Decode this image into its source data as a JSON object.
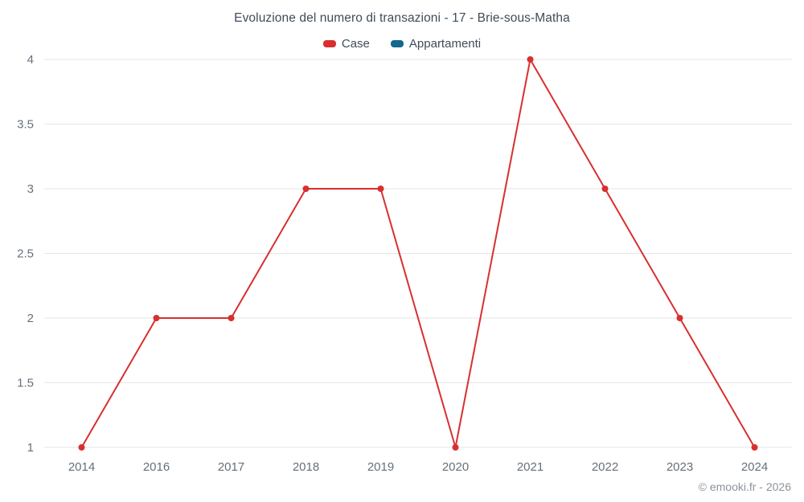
{
  "title": "Evoluzione del numero di transazioni - 17 - Brie-sous-Matha",
  "legend": [
    {
      "label": "Case",
      "color": "#d7302f"
    },
    {
      "label": "Appartamenti",
      "color": "#12688f"
    }
  ],
  "footer": {
    "copyright": "© emooki.fr - 2026"
  },
  "chart_data": {
    "type": "line",
    "title": "Evoluzione del numero di transazioni - 17 - Brie-sous-Matha",
    "categories": [
      "2014",
      "2016",
      "2017",
      "2018",
      "2019",
      "2020",
      "2021",
      "2022",
      "2023",
      "2024"
    ],
    "series": [
      {
        "name": "Case",
        "color": "#d7302f",
        "values": [
          1,
          2,
          2,
          3,
          3,
          1,
          4,
          3,
          2,
          1
        ]
      },
      {
        "name": "Appartamenti",
        "color": "#12688f",
        "values": []
      }
    ],
    "xlabel": "",
    "ylabel": "",
    "ylim": [
      1,
      4
    ],
    "yticks": [
      1,
      1.5,
      2,
      2.5,
      3,
      3.5,
      4
    ],
    "grid": "horizontal",
    "legend_position": "top",
    "grid_color": "#e6e6e6",
    "tick_label_color": "#66707a"
  }
}
